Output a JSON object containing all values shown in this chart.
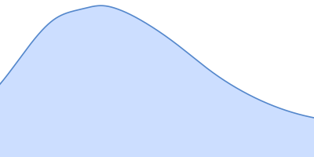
{
  "fill_color": "#ccdeff",
  "line_color": "#5588cc",
  "line_width": 1.2,
  "background_color": "#ffffff",
  "figsize": [
    4.0,
    2.0
  ],
  "dpi": 100,
  "xlim": [
    -0.15,
    1.0
  ],
  "ylim": [
    -0.35,
    1.05
  ],
  "curve_points_x": [
    -0.15,
    -0.05,
    0.05,
    0.15,
    0.22,
    0.28,
    0.38,
    0.5,
    0.62,
    0.75,
    0.88,
    1.0
  ],
  "curve_points_y": [
    0.3,
    0.62,
    0.88,
    0.97,
    1.0,
    0.97,
    0.85,
    0.65,
    0.42,
    0.22,
    0.08,
    0.0
  ]
}
